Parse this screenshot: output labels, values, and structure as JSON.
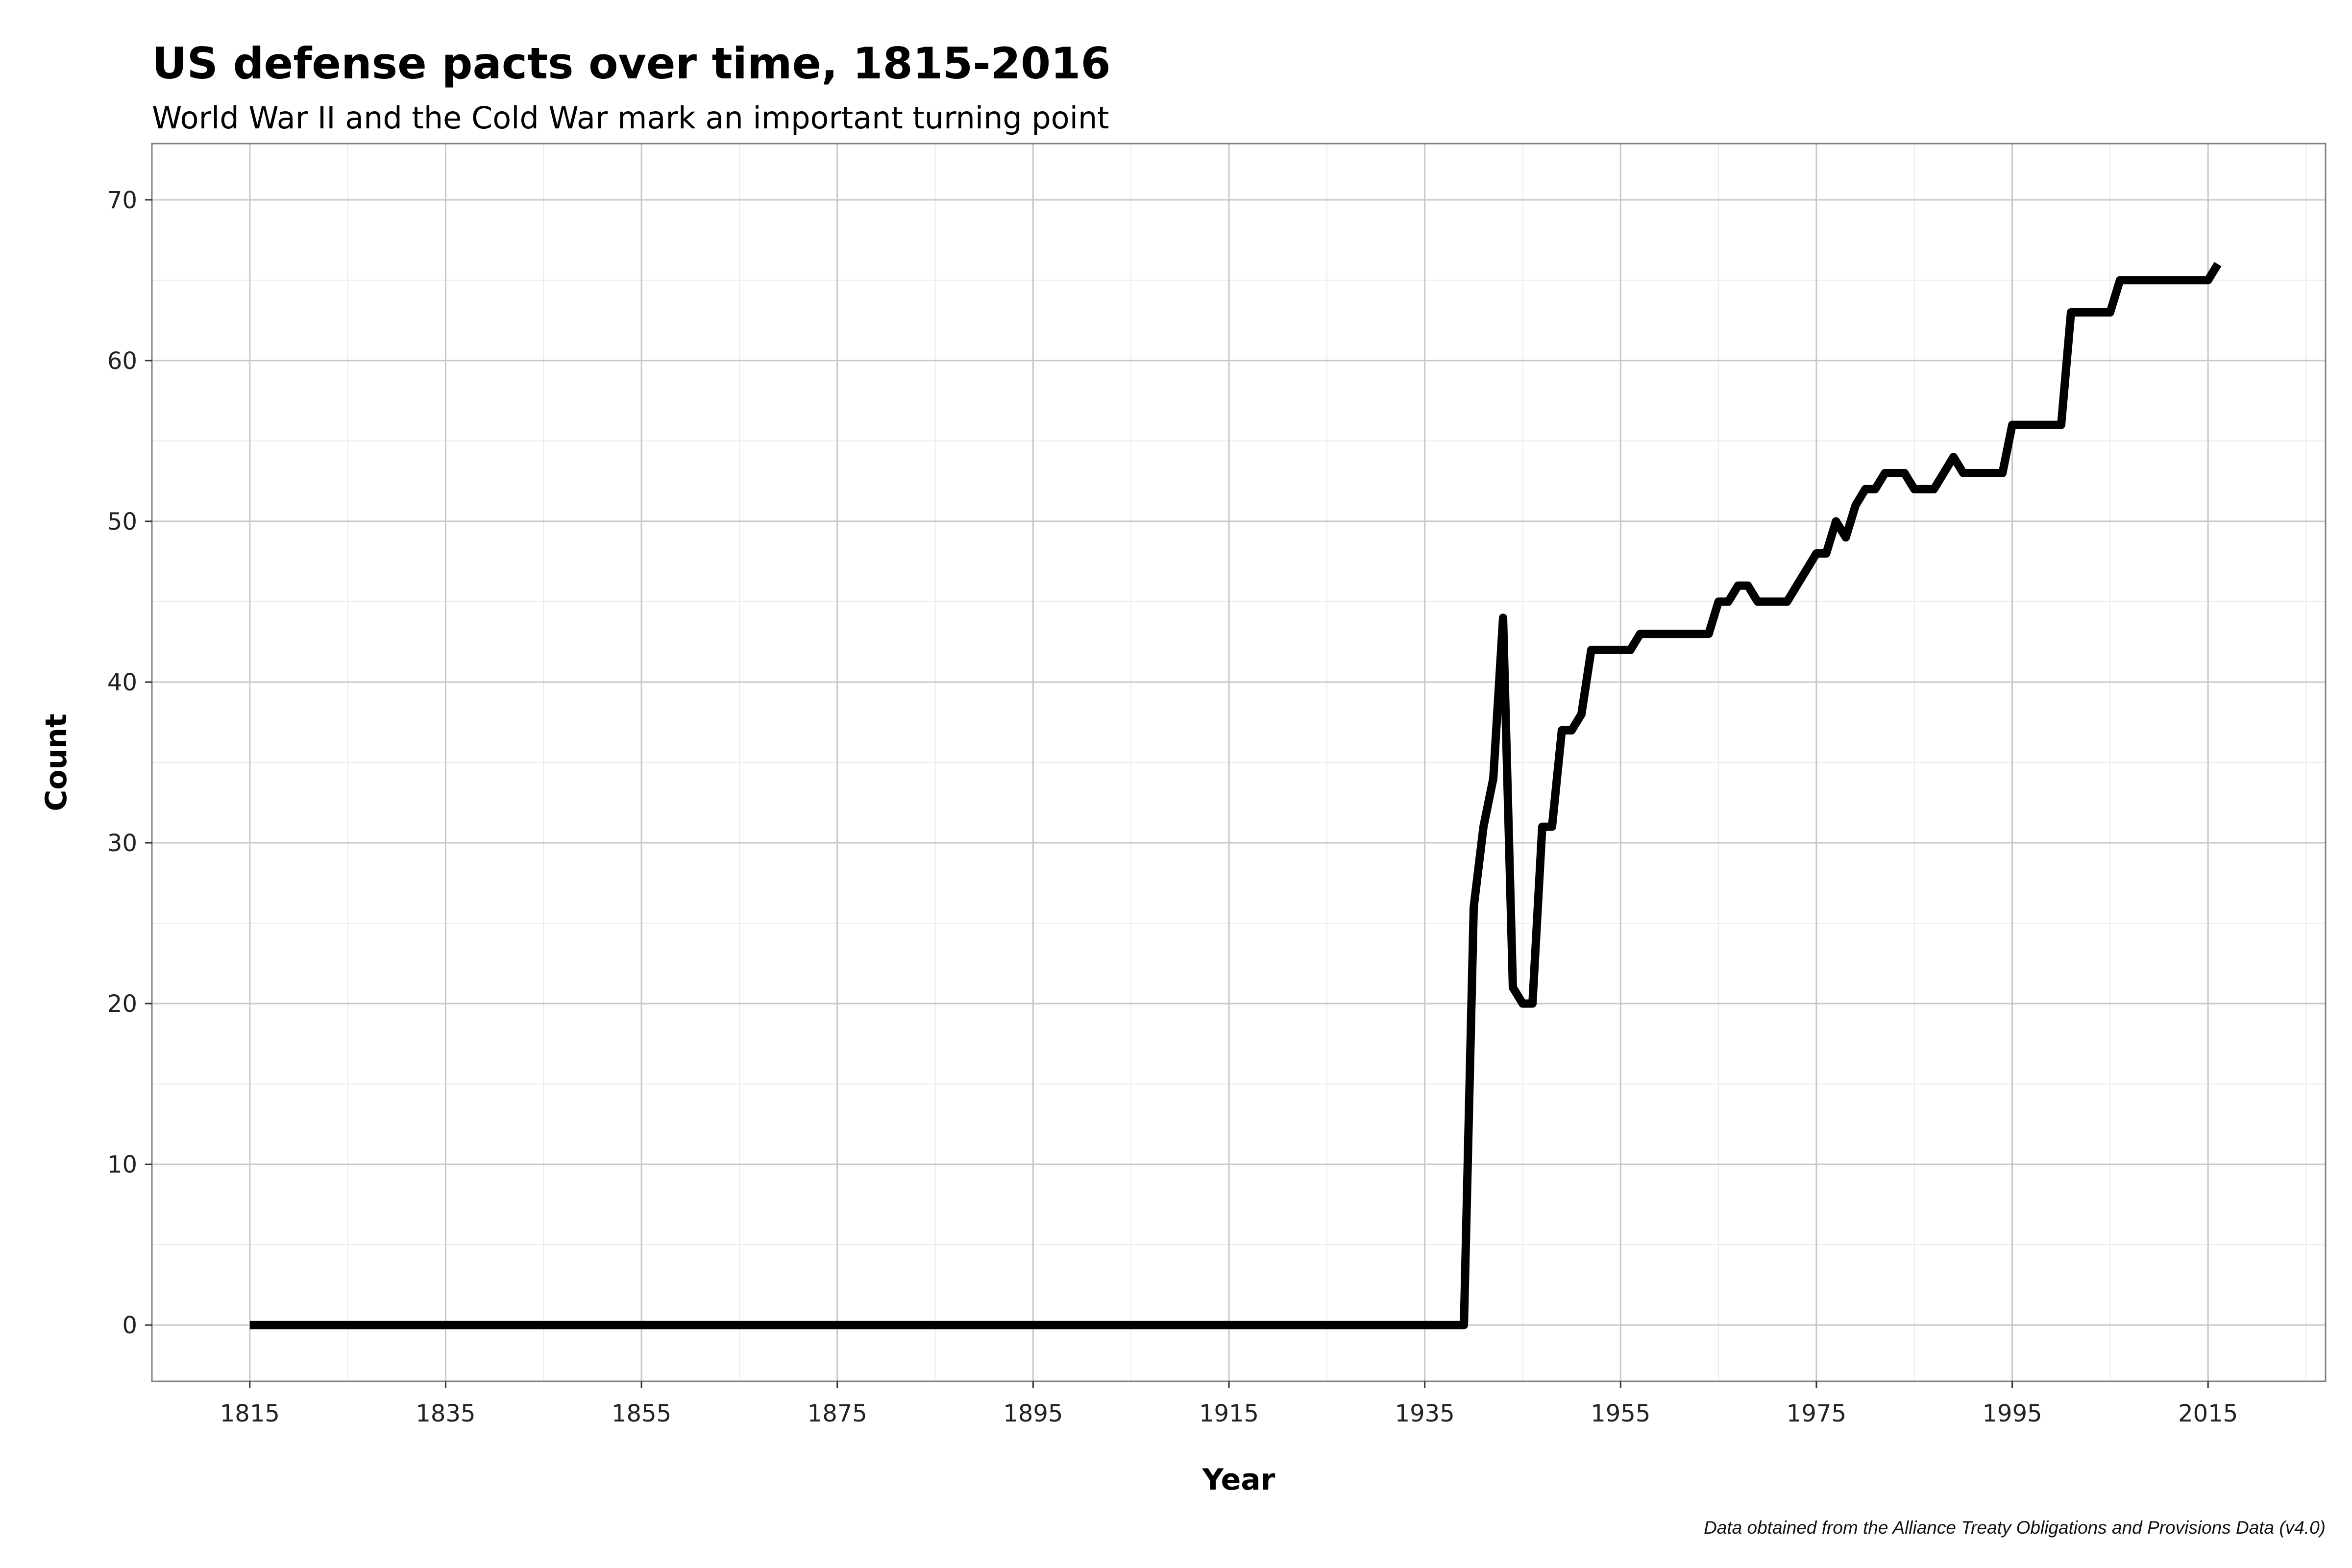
{
  "chart_data": {
    "type": "line",
    "title": "US defense pacts over time, 1815-2016",
    "subtitle": "World War II and the Cold War mark an important turning point",
    "xlabel": "Year",
    "ylabel": "Count",
    "caption": "Data obtained from the Alliance Treaty Obligations and Provisions Data (v4.0)",
    "xlim": [
      1805,
      2027
    ],
    "ylim": [
      -3.5,
      73.5
    ],
    "x_ticks": [
      1815,
      1835,
      1855,
      1875,
      1895,
      1915,
      1935,
      1955,
      1975,
      1995,
      2015
    ],
    "y_ticks": [
      0,
      10,
      20,
      30,
      40,
      50,
      60,
      70
    ],
    "grid": true,
    "legend": "none",
    "line_color": "#000000",
    "series": [
      {
        "x": [
          1815,
          1939,
          1940,
          1941,
          1942,
          1943,
          1944,
          1945,
          1946,
          1947,
          1948,
          1949,
          1950,
          1951,
          1952,
          1953,
          1954,
          1955,
          1956,
          1957,
          1958,
          1959,
          1960,
          1961,
          1962,
          1963,
          1964,
          1965,
          1966,
          1967,
          1968,
          1969,
          1970,
          1971,
          1972,
          1973,
          1974,
          1975,
          1976,
          1977,
          1978,
          1979,
          1980,
          1981,
          1982,
          1983,
          1984,
          1985,
          1986,
          1987,
          1988,
          1989,
          1990,
          1991,
          1992,
          1993,
          1994,
          1995,
          1996,
          1997,
          1998,
          1999,
          2000,
          2001,
          2002,
          2003,
          2004,
          2005,
          2006,
          2007,
          2008,
          2009,
          2010,
          2011,
          2012,
          2013,
          2014,
          2015,
          2016
        ],
        "values": [
          0,
          0,
          26,
          31,
          34,
          44,
          21,
          20,
          20,
          31,
          31,
          37,
          37,
          38,
          42,
          42,
          42,
          42,
          42,
          43,
          43,
          43,
          43,
          43,
          43,
          43,
          43,
          45,
          45,
          46,
          46,
          45,
          45,
          45,
          45,
          46,
          47,
          48,
          48,
          50,
          49,
          51,
          52,
          52,
          53,
          53,
          53,
          52,
          52,
          52,
          53,
          54,
          53,
          53,
          53,
          53,
          53,
          56,
          56,
          56,
          56,
          56,
          56,
          63,
          63,
          63,
          63,
          63,
          65,
          65,
          65,
          65,
          65,
          65,
          65,
          65,
          65,
          65,
          66
        ]
      }
    ]
  }
}
